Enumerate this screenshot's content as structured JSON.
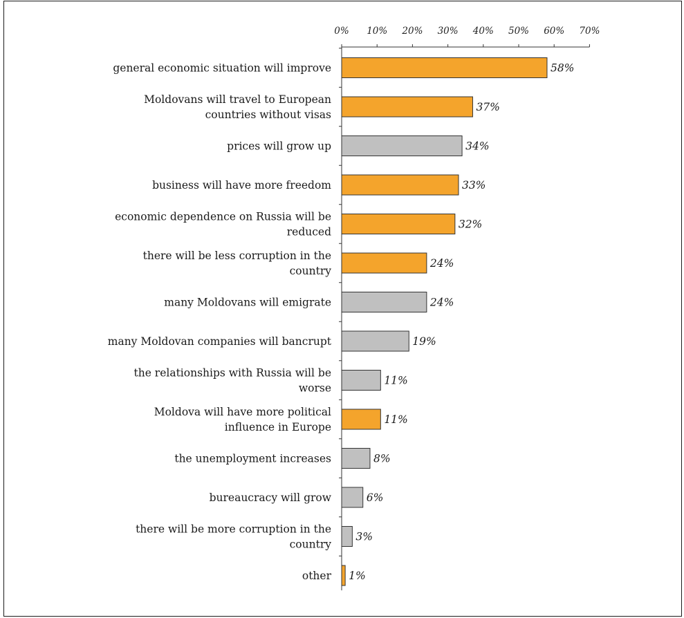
{
  "chart_data": {
    "type": "bar",
    "orientation": "horizontal",
    "title": "",
    "xlabel": "",
    "ylabel": "",
    "xlim": [
      0,
      70
    ],
    "x_ticks": [
      "0%",
      "10%",
      "20%",
      "30%",
      "40%",
      "50%",
      "60%",
      "70%"
    ],
    "x_axis_position": "top",
    "grid": false,
    "legend": "none",
    "value_suffix": "%",
    "colors": {
      "highlight": "#F4A42C",
      "neutral": "#C0C0C0",
      "outline": "#333333"
    },
    "categories": [
      "general economic situation will improve",
      "Moldovans will travel to European countries without visas",
      "prices will grow up",
      "business will have more freedom",
      "economic dependence on Russia will be reduced",
      "there will be less corruption in the country",
      "many Moldovans will emigrate",
      "many Moldovan companies will bancrupt",
      "the relationships with Russia will be worse",
      "Moldova will have more political influence in Europe",
      "the unemployment increases",
      "bureaucracy will grow",
      "there will be more corruption in the country",
      "other"
    ],
    "category_lines": [
      [
        "general economic situation will improve"
      ],
      [
        "Moldovans will travel to European",
        "countries without visas"
      ],
      [
        "prices will grow up"
      ],
      [
        "business will have more freedom"
      ],
      [
        "economic dependence on Russia will be",
        "reduced"
      ],
      [
        "there will be less corruption in the",
        "country"
      ],
      [
        "many Moldovans will emigrate"
      ],
      [
        "many Moldovan companies will bancrupt"
      ],
      [
        "the relationships with Russia will be",
        "worse"
      ],
      [
        "Moldova will have more political",
        "influence in Europe"
      ],
      [
        "the unemployment increases"
      ],
      [
        "bureaucracy will grow"
      ],
      [
        "there will be more corruption in the",
        "country"
      ],
      [
        "other"
      ]
    ],
    "values": [
      58,
      37,
      34,
      33,
      32,
      24,
      24,
      19,
      11,
      11,
      8,
      6,
      3,
      1
    ],
    "value_labels": [
      "58%",
      "37%",
      "34%",
      "33%",
      "32%",
      "24%",
      "24%",
      "19%",
      "11%",
      "11%",
      "8%",
      "6%",
      "3%",
      "1%"
    ],
    "bar_colors": [
      "highlight",
      "highlight",
      "neutral",
      "highlight",
      "highlight",
      "highlight",
      "neutral",
      "neutral",
      "neutral",
      "highlight",
      "neutral",
      "neutral",
      "neutral",
      "highlight"
    ]
  }
}
